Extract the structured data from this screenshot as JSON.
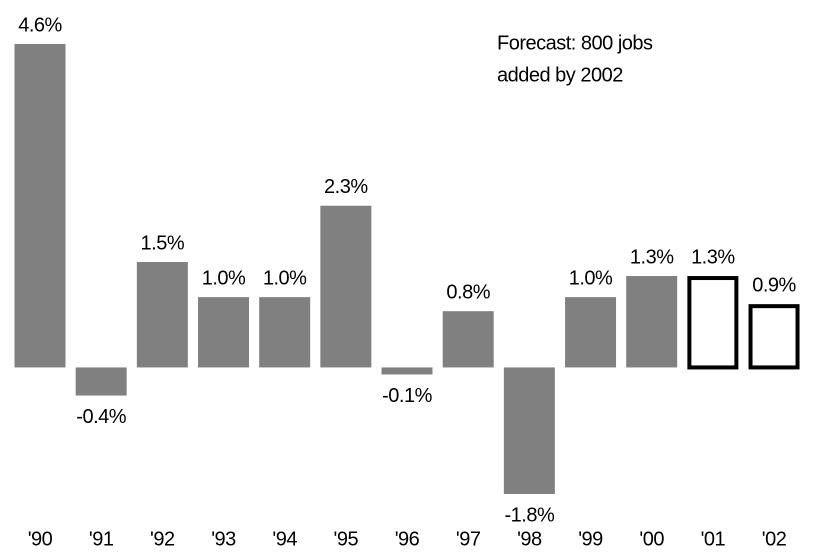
{
  "chart_data": {
    "type": "bar",
    "annotation": [
      "Forecast: 800 jobs",
      "added by 2002"
    ],
    "categories": [
      "'90",
      "'91",
      "'92",
      "'93",
      "'94",
      "'95",
      "'96",
      "'97",
      "'98",
      "'99",
      "'00",
      "'01",
      "'02"
    ],
    "values": [
      4.6,
      -0.4,
      1.5,
      1.0,
      1.0,
      2.3,
      -0.1,
      0.8,
      -1.8,
      1.0,
      1.3,
      1.3,
      0.9
    ],
    "value_labels": [
      "4.6%",
      "-0.4%",
      "1.5%",
      "1.0%",
      "1.0%",
      "2.3%",
      "-0.1%",
      "0.8%",
      "-1.8%",
      "1.0%",
      "1.3%",
      "1.3%",
      "0.9%"
    ],
    "color": "#808080",
    "bar_styles": [
      "filled",
      "filled",
      "filled",
      "filled",
      "filled",
      "filled",
      "filled",
      "filled",
      "filled",
      "filled",
      "filled",
      "outline",
      "outline"
    ]
  }
}
